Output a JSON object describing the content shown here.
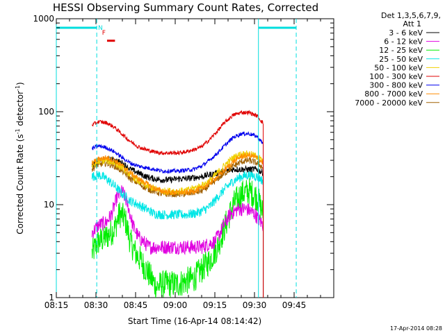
{
  "chart_data": {
    "type": "line",
    "title": "HESSI Observing Summary Count Rates, Corrected",
    "xlabel": "Start Time (16-Apr-14 08:14:42)",
    "ylabel_parts": [
      "Corrected Count Rate (s",
      "-1",
      " detector",
      "-1",
      ")"
    ],
    "y_scale": "log",
    "ylim": [
      1,
      1000
    ],
    "xlim_minutes": [
      495,
      600
    ],
    "x_ticks": [
      {
        "label": "08:15",
        "minute": 495
      },
      {
        "label": "08:30",
        "minute": 510
      },
      {
        "label": "08:45",
        "minute": 525
      },
      {
        "label": "09:00",
        "minute": 540
      },
      {
        "label": "09:15",
        "minute": 555
      },
      {
        "label": "09:30",
        "minute": 570
      },
      {
        "label": "09:45",
        "minute": 585
      }
    ],
    "y_ticks": [
      {
        "label": "1",
        "value": 1
      },
      {
        "label": "10",
        "value": 10
      },
      {
        "label": "100",
        "value": 100
      },
      {
        "label": "1000",
        "value": 1000
      }
    ],
    "legend_header": [
      "Det 1,3,5,6,7,9,",
      "Att 1"
    ],
    "legend_placement": "right",
    "series": [
      {
        "name": "3 - 6 keV",
        "color": "#000000",
        "x": [
          508.5,
          511,
          514,
          517,
          520,
          523,
          526,
          529,
          532,
          535,
          538,
          541,
          544,
          547,
          550,
          553,
          556,
          559,
          562,
          565,
          568,
          571,
          573.3
        ],
        "values": [
          26,
          29,
          31,
          30,
          28,
          24,
          22,
          20,
          19,
          18.5,
          18.5,
          19,
          19,
          19.5,
          20,
          21,
          22,
          23,
          24,
          24,
          24,
          24,
          22
        ]
      },
      {
        "name": "6 - 12 keV",
        "color": "#e000e0",
        "x": [
          508.5,
          511,
          514,
          516,
          518,
          520,
          522,
          524,
          526,
          528,
          530,
          532,
          535,
          538,
          541,
          544,
          547,
          550,
          553,
          555,
          557,
          559,
          561,
          564,
          567,
          570,
          573.3
        ],
        "values": [
          5,
          6,
          6.5,
          8,
          12,
          14,
          10,
          6,
          4.5,
          4,
          3.5,
          3.5,
          3.5,
          3.5,
          3.5,
          3.5,
          3.5,
          3.5,
          3.8,
          4,
          5,
          6.5,
          8,
          9,
          9,
          8,
          6
        ]
      },
      {
        "name": "12 - 25 keV",
        "color": "#00ee00",
        "x": [
          508.5,
          511,
          514,
          517,
          519,
          521,
          523,
          525,
          527,
          529,
          531,
          533,
          535,
          538,
          541,
          544,
          547,
          550,
          553,
          556,
          559,
          562,
          565,
          568,
          571,
          573.3
        ],
        "values": [
          3,
          4,
          4.5,
          5.5,
          8,
          7,
          4,
          3,
          2.5,
          2,
          1.6,
          1.3,
          1.4,
          1.4,
          1.4,
          1.5,
          1.6,
          2,
          2.5,
          3.5,
          6,
          10,
          13,
          14,
          12,
          8
        ]
      },
      {
        "name": "25 - 50 keV",
        "color": "#00e6e6",
        "x": [
          508.5,
          511,
          514,
          517,
          520,
          523,
          526,
          529,
          532,
          535,
          538,
          541,
          544,
          547,
          550,
          553,
          556,
          559,
          562,
          565,
          568,
          571,
          573.3
        ],
        "values": [
          20,
          21,
          19,
          16,
          13,
          11,
          10,
          9,
          8,
          7.8,
          7.8,
          7.8,
          7.8,
          8,
          8.5,
          9.5,
          12,
          15,
          18,
          20,
          21,
          20,
          18
        ]
      },
      {
        "name": "50 - 100 keV",
        "color": "#f0d000",
        "x": [
          508.5,
          511,
          514,
          517,
          520,
          523,
          526,
          529,
          532,
          535,
          538,
          541,
          544,
          547,
          550,
          553,
          556,
          559,
          562,
          565,
          568,
          571,
          573.3
        ],
        "values": [
          26,
          29,
          30,
          28,
          25,
          21,
          18,
          16,
          15,
          14,
          14,
          14,
          14,
          15,
          16,
          18,
          22,
          27,
          32,
          35,
          35,
          33,
          29
        ]
      },
      {
        "name": "100 - 300 keV",
        "color": "#e00000",
        "x": [
          508.5,
          511,
          514,
          517,
          520,
          523,
          526,
          529,
          532,
          535,
          538,
          541,
          544,
          547,
          550,
          553,
          556,
          559,
          562,
          565,
          568,
          571,
          573.3
        ],
        "values": [
          72,
          78,
          76,
          68,
          57,
          48,
          42,
          39,
          37,
          36,
          36,
          36,
          37,
          39,
          42,
          50,
          62,
          78,
          92,
          98,
          98,
          90,
          75
        ]
      },
      {
        "name": "300 - 800 keV",
        "color": "#0000ee",
        "x": [
          508.5,
          511,
          514,
          517,
          520,
          523,
          526,
          529,
          532,
          535,
          538,
          541,
          544,
          547,
          550,
          553,
          556,
          559,
          562,
          565,
          568,
          571,
          573.3
        ],
        "values": [
          40,
          43,
          41,
          37,
          32,
          28,
          26,
          25,
          24,
          23,
          23,
          23,
          23.5,
          24,
          26,
          30,
          36,
          44,
          53,
          58,
          58,
          54,
          45
        ]
      },
      {
        "name": "800 - 7000 keV",
        "color": "#ff8c00",
        "x": [
          508.5,
          511,
          514,
          517,
          520,
          523,
          526,
          529,
          532,
          535,
          538,
          541,
          544,
          547,
          550,
          553,
          556,
          559,
          562,
          565,
          568,
          571,
          573.3
        ],
        "values": [
          28,
          31,
          32,
          30,
          26,
          22,
          19,
          17,
          15,
          14,
          13.5,
          13.5,
          13.5,
          14,
          15,
          17,
          20,
          24,
          29,
          33,
          34,
          32,
          28
        ]
      },
      {
        "name": "7000 - 20000 keV",
        "color": "#a06000",
        "x": [
          508.5,
          511,
          514,
          517,
          520,
          523,
          526,
          529,
          532,
          535,
          538,
          541,
          544,
          547,
          550,
          553,
          556,
          559,
          562,
          565,
          568,
          571,
          573.3
        ],
        "values": [
          24,
          27,
          28,
          26,
          23,
          19,
          17,
          15,
          14,
          13,
          13,
          13,
          13,
          13.5,
          14,
          16,
          19,
          22,
          26,
          29,
          30,
          28,
          25
        ]
      }
    ],
    "attenuator_state_segments": [
      {
        "x_start": 495,
        "x_end": 510.3,
        "value": 800
      },
      {
        "x_start": 571.5,
        "x_end": 585.8,
        "value": 800
      }
    ],
    "attenuator_state_color": "#00dede",
    "solid_vertical_lines_minutes": [
      495,
      571.5
    ],
    "dashed_vertical_lines_minutes": [
      510.3,
      585.8
    ],
    "flags": [
      {
        "label": "N",
        "color": "#00dede",
        "minute": 510.8
      },
      {
        "label": "F",
        "color": "#e00000",
        "minute": 512.3
      }
    ],
    "flag_bar": {
      "x_start": 514.2,
      "x_end": 517.2,
      "value": 580,
      "color": "#e00000"
    }
  },
  "timestamp": "17-Apr-2014 08:28"
}
